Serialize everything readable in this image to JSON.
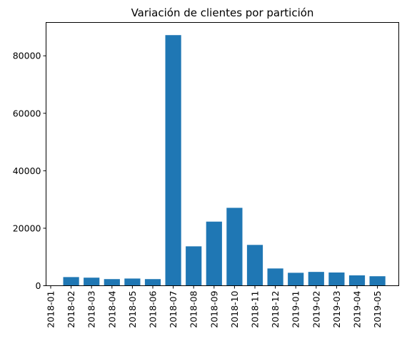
{
  "chart_data": {
    "type": "bar",
    "title": "Variación de clientes por partición",
    "xlabel": "",
    "ylabel": "",
    "categories": [
      "2018-01",
      "2018-02",
      "2018-03",
      "2018-04",
      "2018-05",
      "2018-06",
      "2018-07",
      "2018-08",
      "2018-09",
      "2018-10",
      "2018-11",
      "2018-12",
      "2019-01",
      "2019-02",
      "2019-03",
      "2019-04",
      "2019-05"
    ],
    "values": [
      0,
      3000,
      2800,
      2300,
      2500,
      2300,
      87200,
      13700,
      22300,
      27100,
      14200,
      6000,
      4500,
      4800,
      4600,
      3600,
      3300
    ],
    "ylim": [
      0,
      91600
    ],
    "yticks": [
      0,
      20000,
      40000,
      60000,
      80000
    ],
    "ytick_labels": [
      "0",
      "20000",
      "40000",
      "60000",
      "80000"
    ],
    "bar_color": "#1f77b4",
    "grid": false,
    "legend": "none"
  }
}
